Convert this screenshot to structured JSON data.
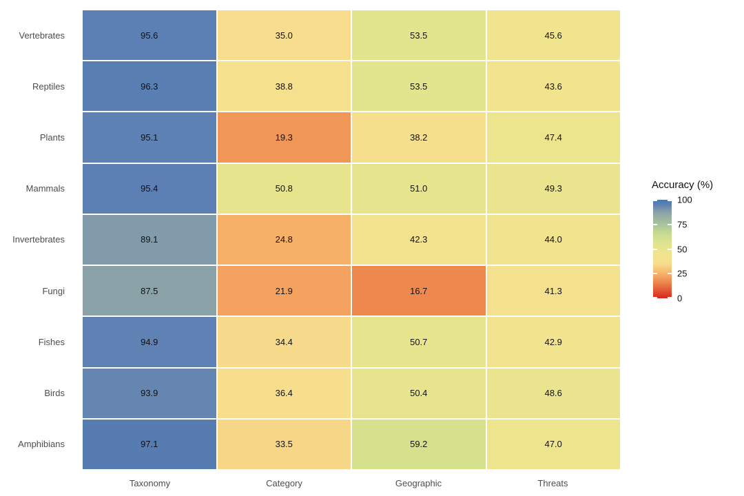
{
  "chart_data": {
    "type": "heatmap",
    "legend_title": "Accuracy (%)",
    "rows": [
      "Vertebrates",
      "Reptiles",
      "Plants",
      "Mammals",
      "Invertebrates",
      "Fungi",
      "Fishes",
      "Birds",
      "Amphibians"
    ],
    "columns": [
      "Taxonomy",
      "Category",
      "Geographic",
      "Threats"
    ],
    "values": [
      [
        95.6,
        35.0,
        53.5,
        45.6
      ],
      [
        96.3,
        38.8,
        53.5,
        43.6
      ],
      [
        95.1,
        19.3,
        38.2,
        47.4
      ],
      [
        95.4,
        50.8,
        51.0,
        49.3
      ],
      [
        89.1,
        24.8,
        42.3,
        44.0
      ],
      [
        87.5,
        21.9,
        16.7,
        41.3
      ],
      [
        94.9,
        34.4,
        50.7,
        42.9
      ],
      [
        93.9,
        36.4,
        50.4,
        48.6
      ],
      [
        97.1,
        33.5,
        59.2,
        47.0
      ]
    ],
    "value_decimals": 1,
    "scale_min": 0,
    "scale_max": 100,
    "legend_ticks": [
      100,
      75,
      50,
      25,
      0
    ],
    "legend_position": "right",
    "grid_gap_color": "#ffffff",
    "axis_label_color": "#4d4d4d",
    "cell_text_color": "#111111",
    "colormap_stops": [
      [
        0,
        "#d7261d"
      ],
      [
        15,
        "#ec8149"
      ],
      [
        25,
        "#f6b169"
      ],
      [
        35,
        "#f7dd8d"
      ],
      [
        45,
        "#f1e48e"
      ],
      [
        55,
        "#e0e48e"
      ],
      [
        65,
        "#c8dd8f"
      ],
      [
        75,
        "#a9c39d"
      ],
      [
        87.5,
        "#8aa2a7"
      ],
      [
        95,
        "#5e81b3"
      ],
      [
        100,
        "#4a76b1"
      ]
    ]
  }
}
